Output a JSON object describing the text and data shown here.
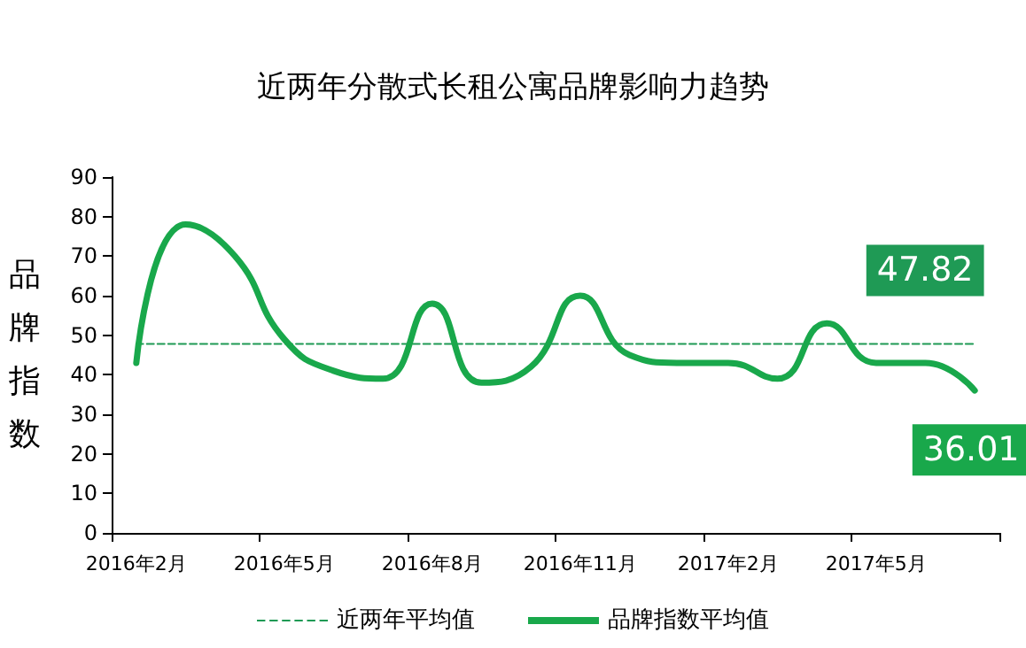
{
  "chart_data": {
    "type": "line",
    "title": "近两年分散式长租公寓品牌影响力趋势",
    "ylabel": "品牌指数",
    "categories": [
      "2016年2月",
      null,
      null,
      "2016年5月",
      null,
      null,
      "2016年8月",
      null,
      null,
      "2016年11月",
      null,
      null,
      "2017年2月",
      null,
      null,
      "2017年5月",
      null,
      null
    ],
    "series": [
      {
        "name": "近两年平均值",
        "color": "#1f9a55",
        "line_style": "dashed",
        "values": [
          47.82,
          47.82,
          47.82,
          47.82,
          47.82,
          47.82,
          47.82,
          47.82,
          47.82,
          47.82,
          47.82,
          47.82,
          47.82,
          47.82,
          47.82,
          47.82,
          47.82,
          47.82
        ],
        "value_labels": [
          null,
          null,
          null,
          null,
          null,
          null,
          null,
          null,
          null,
          null,
          null,
          null,
          null,
          null,
          null,
          null,
          null,
          "47.82"
        ]
      },
      {
        "name": "品牌指数平均值",
        "color": "#19a84b",
        "line_style": "solid",
        "values": [
          43,
          78,
          70,
          49,
          41,
          39,
          58,
          38,
          42,
          60,
          45,
          43,
          43,
          39,
          53,
          43,
          43,
          36.01
        ],
        "value_labels": [
          null,
          null,
          null,
          null,
          null,
          null,
          null,
          null,
          null,
          null,
          null,
          null,
          null,
          null,
          null,
          null,
          null,
          "36.01"
        ]
      }
    ],
    "ylim": [
      0,
      90
    ],
    "yticks": [
      0,
      10,
      20,
      30,
      40,
      50,
      60,
      70,
      80,
      90
    ],
    "grid": false,
    "legend": "bottom",
    "marker": "none"
  }
}
